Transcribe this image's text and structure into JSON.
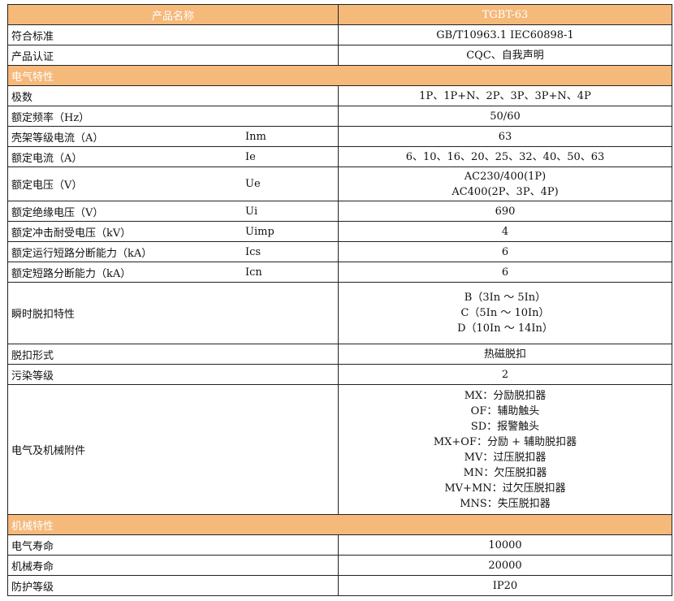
{
  "header": {
    "name_label": "产品名称",
    "model": "TGBT-63"
  },
  "top_rows": [
    {
      "label": "符合标准",
      "value": "GB/T10963.1    IEC60898-1"
    },
    {
      "label": "产品认证",
      "value": "CQC、自我声明"
    }
  ],
  "section_electrical": "电气特性",
  "electrical_rows": [
    {
      "label": "极数",
      "symbol": "",
      "lines": [
        "1P、1P+N、2P、3P、3P+N、4P"
      ]
    },
    {
      "label": "额定频率（Hz）",
      "symbol": "",
      "lines": [
        "50/60"
      ]
    },
    {
      "label": "壳架等级电流（A）",
      "symbol": "Inm",
      "lines": [
        "63"
      ]
    },
    {
      "label": "额定电流（A）",
      "symbol": "Ie",
      "lines": [
        "6、10、16、20、25、32、40、50、63"
      ]
    },
    {
      "label": "额定电压（V）",
      "symbol": "Ue",
      "lines": [
        "AC230/400(1P)",
        "AC400(2P、3P、4P)"
      ]
    },
    {
      "label": "额定绝缘电压（V）",
      "symbol": "Ui",
      "lines": [
        "690"
      ]
    },
    {
      "label": "额定冲击耐受电压（kV）",
      "symbol": "Uimp",
      "lines": [
        "4"
      ]
    },
    {
      "label": "额定运行短路分断能力（kA）",
      "symbol": "Ics",
      "lines": [
        "6"
      ]
    },
    {
      "label": "额定短路分断能力（kA）",
      "symbol": "Icn",
      "lines": [
        "6"
      ]
    },
    {
      "label": "瞬时脱扣特性",
      "symbol": "",
      "lines": [
        "B（3In ～ 5In）",
        "C（5In ～ 10In）",
        "D（10In ～ 14In）"
      ]
    },
    {
      "label": "脱扣形式",
      "symbol": "",
      "lines": [
        "热磁脱扣"
      ]
    },
    {
      "label": "污染等级",
      "symbol": "",
      "lines": [
        "2"
      ]
    },
    {
      "label": "电气及机械附件",
      "symbol": "",
      "lines": [
        "MX：分励脱扣器",
        "OF：辅助触头",
        "SD：报警触头",
        "MX+OF：分励 + 辅助脱扣器",
        "MV：过压脱扣器",
        "MN：欠压脱扣器",
        "MV+MN：过欠压脱扣器",
        "MNS：失压脱扣器"
      ]
    }
  ],
  "section_mechanical": "机械特性",
  "mechanical_rows": [
    {
      "label": "电气寿命",
      "value": "10000"
    },
    {
      "label": "机械寿命",
      "value": "20000"
    },
    {
      "label": "防护等级",
      "value": "IP20"
    }
  ]
}
